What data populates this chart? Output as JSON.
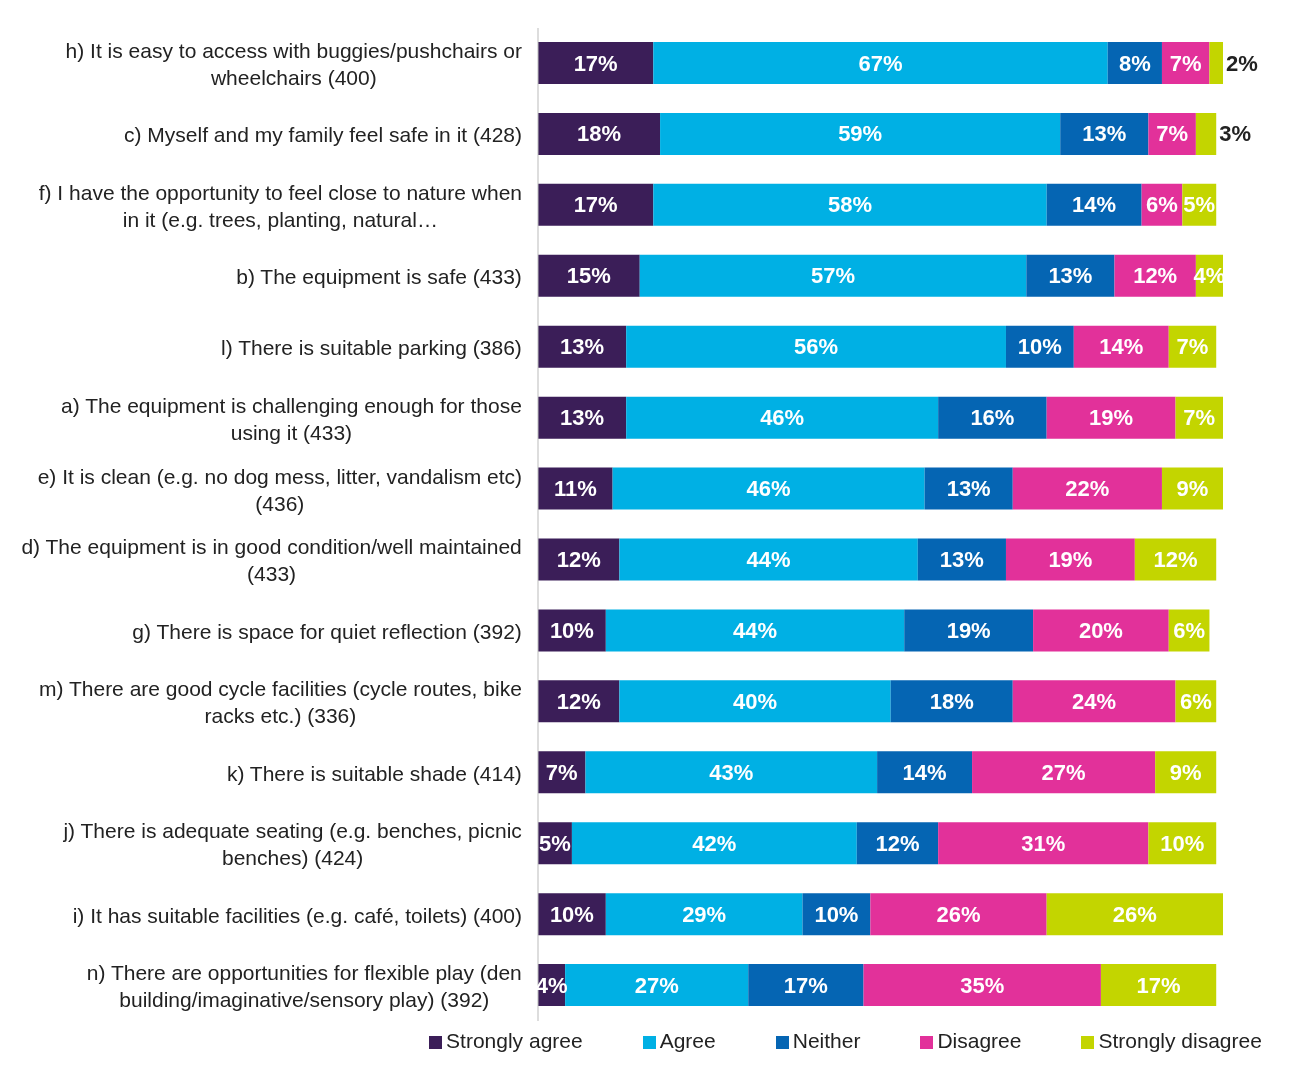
{
  "chart_data": {
    "type": "bar",
    "orientation": "horizontal",
    "stacked": true,
    "legend": "bottom",
    "grid": false,
    "categories": [
      "h) It is easy to access with buggies/pushchairs or wheelchairs (400)",
      "c) Myself and my family feel safe in it (428)",
      "f) I have the opportunity to feel close to nature when in it (e.g. trees, planting, natural…",
      "b) The equipment is safe (433)",
      "l) There is suitable parking (386)",
      "a) The equipment is challenging enough for those using it (433)",
      "e) It is clean (e.g. no dog mess, litter, vandalism etc) (436)",
      "d) The equipment is in good condition/well maintained (433)",
      "g) There is space for quiet reflection (392)",
      "m) There are good cycle facilities (cycle routes, bike racks etc.) (336)",
      "k) There is suitable shade (414)",
      "j) There is adequate seating (e.g. benches, picnic benches) (424)",
      "i) It has suitable facilities (e.g. café, toilets) (400)",
      "n) There are opportunities for flexible play (den building/imaginative/sensory play) (392)"
    ],
    "series": [
      {
        "name": "Strongly agree",
        "color": "#3b1e58",
        "values": [
          17,
          18,
          17,
          15,
          13,
          13,
          11,
          12,
          10,
          12,
          7,
          5,
          10,
          4
        ],
        "value_labels": [
          "17%",
          "18%",
          "17%",
          "15%",
          "13%",
          "13%",
          "11%",
          "12%",
          "10%",
          "12%",
          "7%",
          "5%",
          "10%",
          "4%"
        ]
      },
      {
        "name": "Agree",
        "color": "#00b0e4",
        "values": [
          67,
          59,
          58,
          57,
          56,
          46,
          46,
          44,
          44,
          40,
          43,
          42,
          29,
          27
        ],
        "value_labels": [
          "67%",
          "59%",
          "58%",
          "57%",
          "56%",
          "46%",
          "46%",
          "44%",
          "44%",
          "40%",
          "43%",
          "42%",
          "29%",
          "27%"
        ]
      },
      {
        "name": "Neither",
        "color": "#0565b3",
        "values": [
          8,
          13,
          14,
          13,
          10,
          16,
          13,
          13,
          19,
          18,
          14,
          12,
          10,
          17
        ],
        "value_labels": [
          "8%",
          "13%",
          "14%",
          "13%",
          "10%",
          "16%",
          "13%",
          "13%",
          "19%",
          "18%",
          "14%",
          "12%",
          "10%",
          "17%"
        ]
      },
      {
        "name": "Disagree",
        "color": "#e2319a",
        "values": [
          7,
          7,
          6,
          12,
          14,
          19,
          22,
          19,
          20,
          24,
          27,
          31,
          26,
          35
        ],
        "value_labels": [
          "7%",
          "7%",
          "6%",
          "12%",
          "14%",
          "19%",
          "22%",
          "19%",
          "20%",
          "24%",
          "27%",
          "31%",
          "26%",
          "35%"
        ]
      },
      {
        "name": "Strongly disagree",
        "color": "#c3d500",
        "values": [
          2,
          3,
          5,
          4,
          7,
          7,
          9,
          12,
          6,
          6,
          9,
          10,
          26,
          17
        ],
        "value_labels": [
          "2%",
          "3%",
          "5%",
          "4%",
          "7%",
          "7%",
          "9%",
          "12%",
          "6%",
          "6%",
          "9%",
          "10%",
          "26%",
          "17%"
        ]
      }
    ]
  }
}
